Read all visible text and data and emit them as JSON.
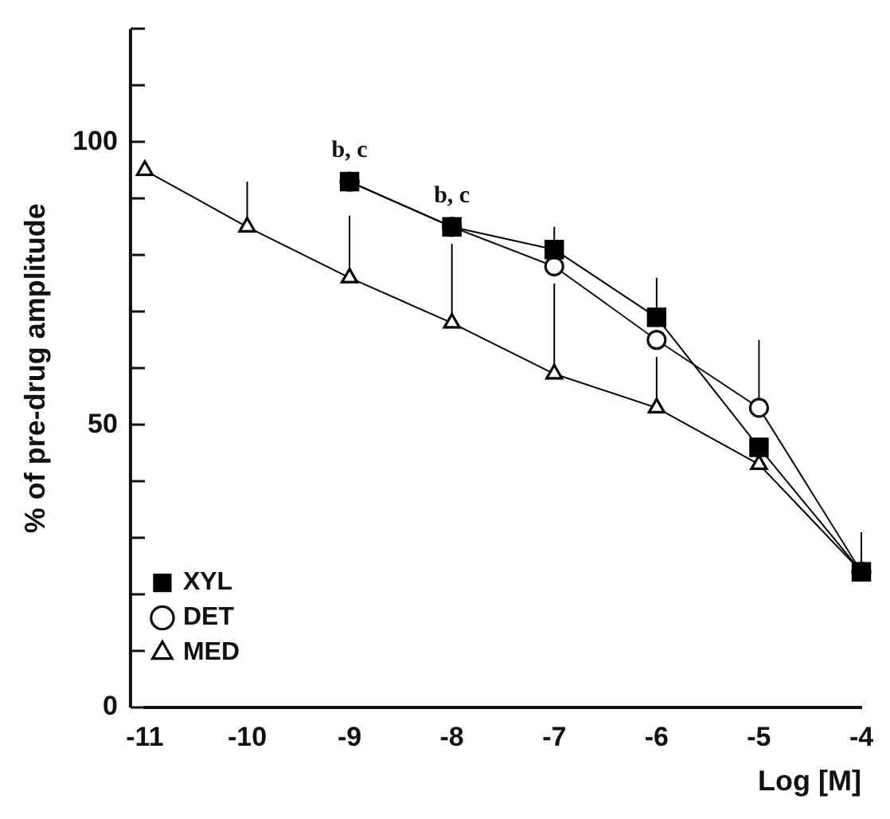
{
  "chart_data": {
    "type": "line",
    "xlabel": "Log [M]",
    "ylabel": "% of pre-drug amplitude",
    "xlim": [
      -11,
      -4
    ],
    "xticks": [
      -11,
      -10,
      -9,
      -8,
      -7,
      -6,
      -5,
      -4
    ],
    "ylim": [
      0,
      120
    ],
    "yticks": [
      0,
      {
        "value": 10,
        "label": null
      },
      {
        "value": 20,
        "label": null
      },
      {
        "value": 30,
        "label": null
      },
      {
        "value": 40,
        "label": null
      },
      50,
      {
        "value": 60,
        "label": null
      },
      {
        "value": 70,
        "label": null
      },
      {
        "value": 80,
        "label": null
      },
      {
        "value": 90,
        "label": null
      },
      100,
      {
        "value": 110,
        "label": null
      },
      {
        "value": 120,
        "label": null
      }
    ],
    "grid": false,
    "legend": "bottom left",
    "series": [
      {
        "name": "XYL",
        "color": "#000000",
        "marker": "square",
        "x": [
          -9,
          -8,
          -7,
          -6,
          -5,
          -4
        ],
        "values": [
          93,
          85,
          81,
          69,
          46,
          24
        ],
        "errors": [
          null,
          null,
          [
            81,
            85
          ],
          [
            69,
            76
          ],
          null,
          [
            24,
            31
          ]
        ]
      },
      {
        "name": "DET",
        "color": "#111111",
        "marker": "circle",
        "x": [
          -9,
          -8,
          -7,
          -6,
          -5,
          -4
        ],
        "values": [
          93,
          85,
          78,
          65,
          53,
          24
        ],
        "errors": [
          null,
          null,
          null,
          null,
          [
            53,
            65
          ],
          null
        ]
      },
      {
        "name": "MED",
        "color": "#000000",
        "marker": "triangle",
        "x": [
          -11,
          -10,
          -9,
          -8,
          -7,
          -6,
          -5,
          -4
        ],
        "values": [
          95,
          85,
          76,
          68,
          59,
          53,
          43,
          24
        ],
        "errors": [
          null,
          [
            85,
            93
          ],
          [
            76,
            87
          ],
          [
            68,
            82
          ],
          [
            59,
            75
          ],
          [
            53,
            62
          ],
          null,
          null
        ]
      }
    ],
    "annotations": [
      {
        "text": "b, c",
        "x": -9,
        "y": 93
      },
      {
        "text": "b, c",
        "x": -8,
        "y": 85
      }
    ]
  }
}
